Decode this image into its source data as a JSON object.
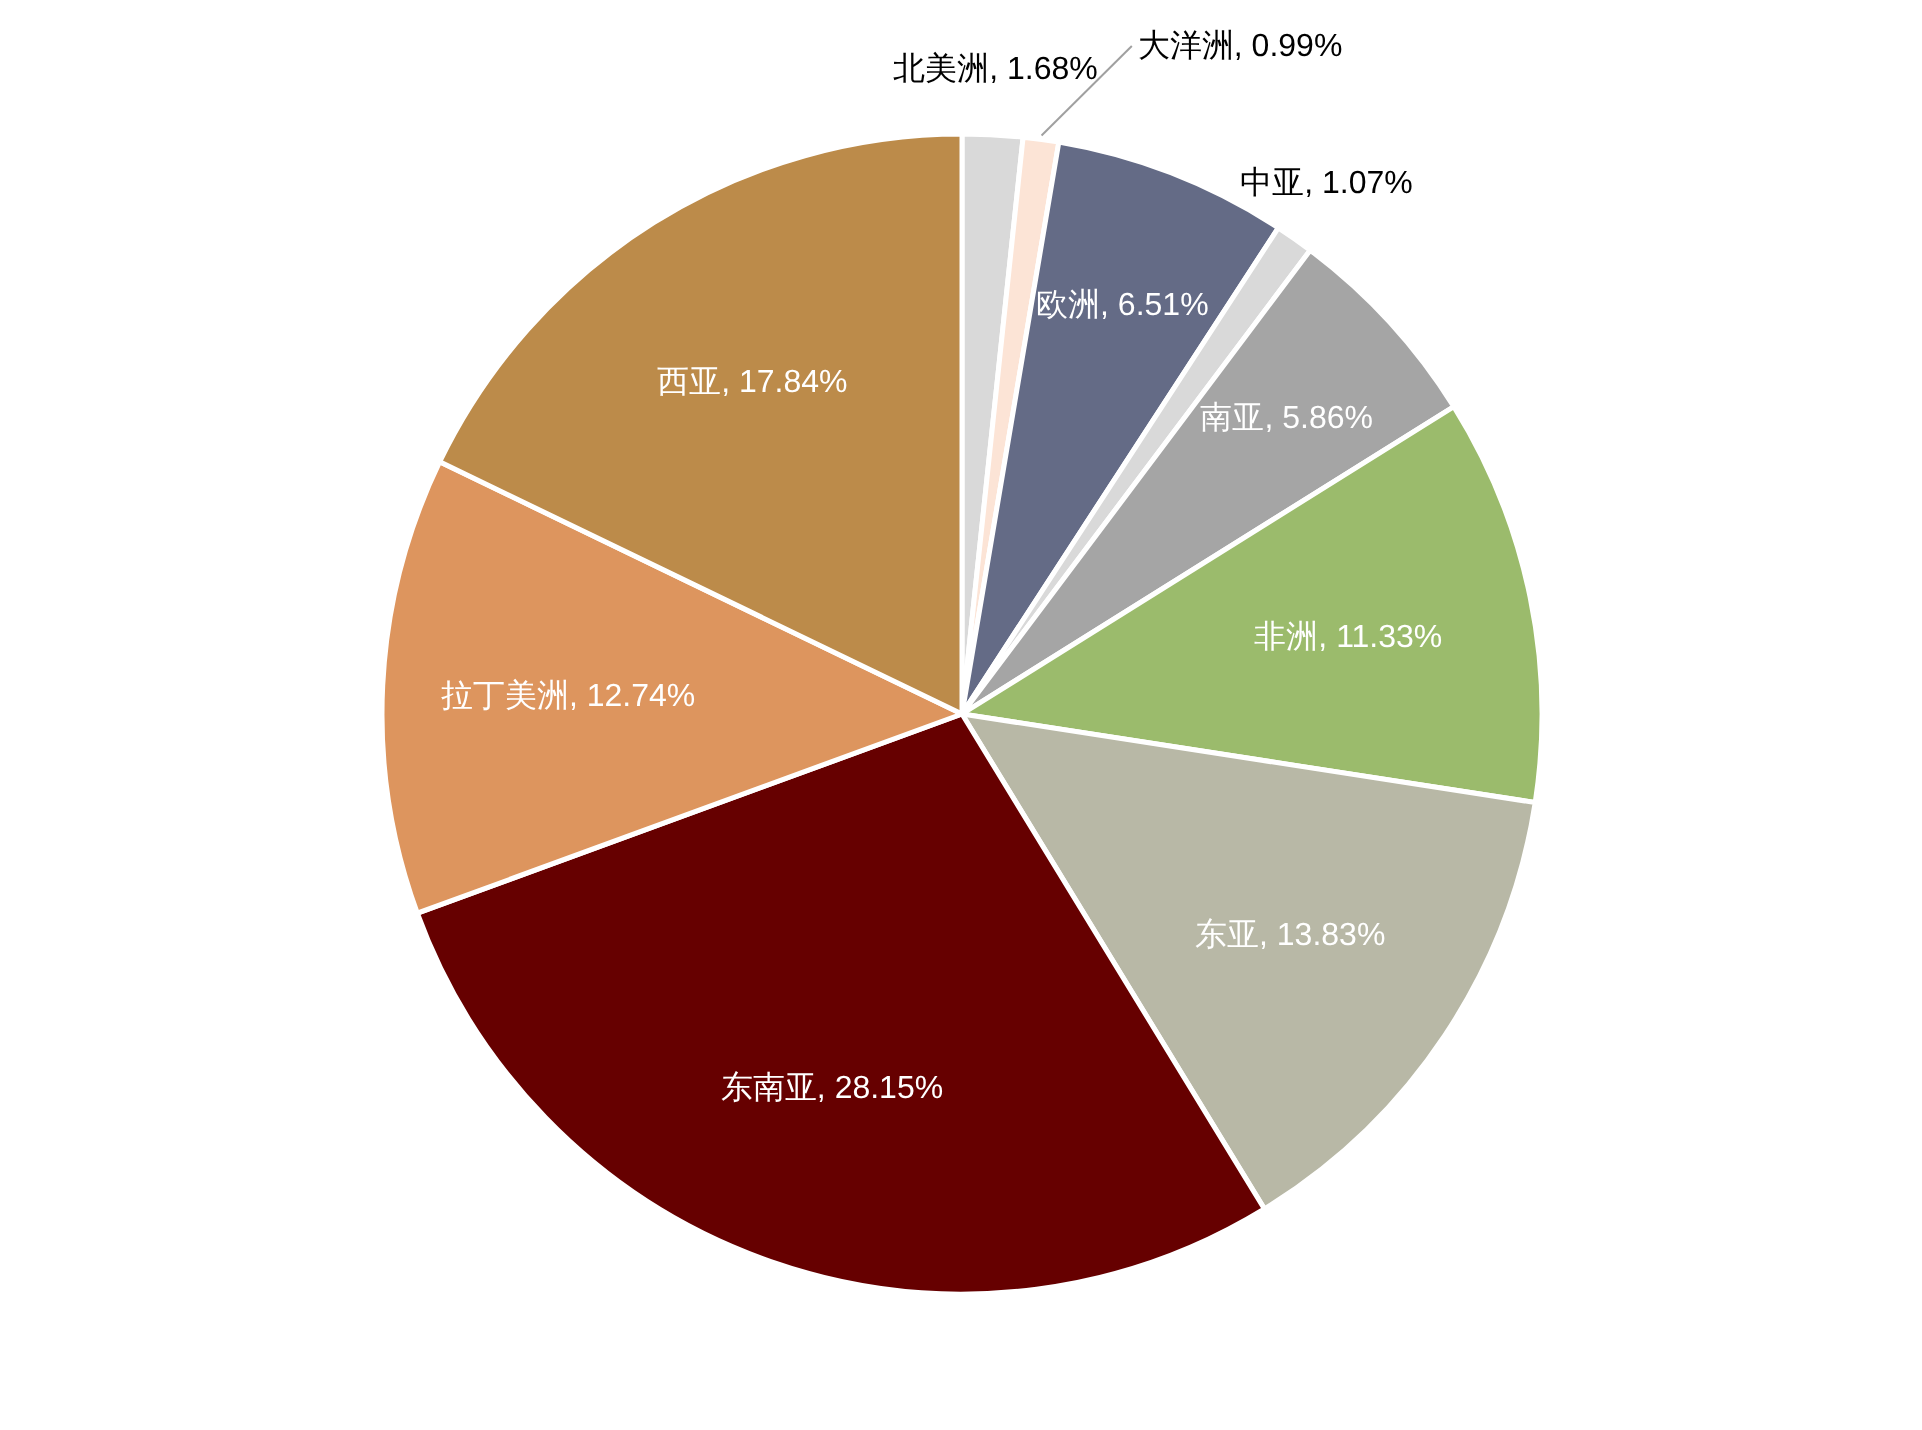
{
  "chart_data": {
    "type": "pie",
    "categories": [
      "北美洲",
      "大洋洲",
      "欧洲",
      "中亚",
      "南亚",
      "非洲",
      "东亚",
      "东南亚",
      "拉丁美洲",
      "西亚"
    ],
    "values": [
      1.68,
      0.99,
      6.51,
      1.07,
      5.86,
      11.33,
      13.83,
      28.15,
      12.74,
      17.84
    ],
    "colors": [
      "#d9d9d9",
      "#fce4d6",
      "#646b86",
      "#d9d9d9",
      "#a5a5a5",
      "#9bbb6c",
      "#b8b8a6",
      "#660000",
      "#dd955e",
      "#bc8b4a"
    ],
    "value_labels": [
      "1.68%",
      "0.99%",
      "6.51%",
      "1.07%",
      "5.86%",
      "11.33%",
      "13.83%",
      "28.15%",
      "12.74%",
      "17.84%"
    ]
  }
}
